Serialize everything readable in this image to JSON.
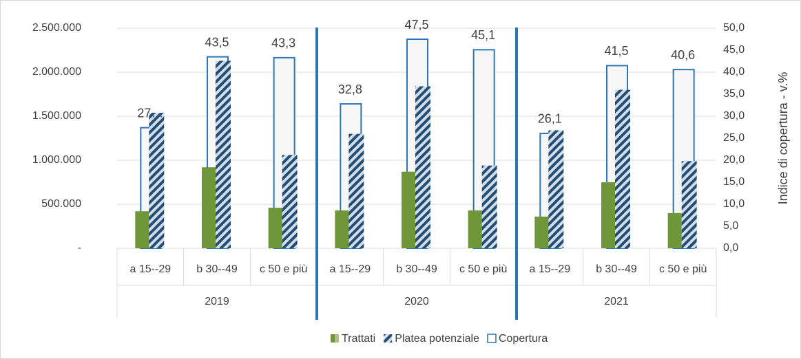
{
  "chart_data": {
    "type": "bar",
    "categories": [
      "a 15--29",
      "b 30--49",
      "c 50 e più",
      "a 15--29",
      "b 30--49",
      "c 50 e più",
      "a 15--29",
      "b 30--49",
      "c 50 e più"
    ],
    "group_labels": [
      "2019",
      "2020",
      "2021"
    ],
    "series": [
      {
        "name": "Trattati",
        "color": "#70963a",
        "values": [
          420000,
          920000,
          460000,
          430000,
          870000,
          430000,
          360000,
          750000,
          400000
        ]
      },
      {
        "name": "Platea potenziale",
        "color": "#1f4e79",
        "values": [
          1540000,
          2130000,
          1060000,
          1300000,
          1840000,
          940000,
          1340000,
          1800000,
          990000
        ]
      },
      {
        "name": "Copertura",
        "color": "#2e75b6",
        "axis": "y2",
        "values": [
          27.4,
          43.5,
          43.3,
          32.8,
          47.5,
          45.1,
          26.1,
          41.5,
          40.6
        ],
        "value_labels": [
          "27…",
          "43,5",
          "43,3",
          "32,8",
          "47,5",
          "45,1",
          "26,1",
          "41,5",
          "40,6"
        ]
      }
    ],
    "ylim": [
      0,
      2500000
    ],
    "yticks": [
      {
        "value": 0,
        "label": "-"
      },
      {
        "value": 500000,
        "label": "500.000"
      },
      {
        "value": 1000000,
        "label": "1.000.000"
      },
      {
        "value": 1500000,
        "label": "1.500.000"
      },
      {
        "value": 2000000,
        "label": "2.000.000"
      },
      {
        "value": 2500000,
        "label": "2.500.000"
      }
    ],
    "y2lim": [
      0,
      50
    ],
    "y2ticks": [
      {
        "value": 0,
        "label": "0,0"
      },
      {
        "value": 5,
        "label": "5,0"
      },
      {
        "value": 10,
        "label": "10,0"
      },
      {
        "value": 15,
        "label": "15,0"
      },
      {
        "value": 20,
        "label": "20,0"
      },
      {
        "value": 25,
        "label": "25,0"
      },
      {
        "value": 30,
        "label": "30,0"
      },
      {
        "value": 35,
        "label": "35,0"
      },
      {
        "value": 40,
        "label": "40,0"
      },
      {
        "value": 45,
        "label": "45,0"
      },
      {
        "value": 50,
        "label": "50,0"
      }
    ],
    "y2label": "Indice di copertura - v.%",
    "grid": true,
    "legend": "bottom"
  }
}
